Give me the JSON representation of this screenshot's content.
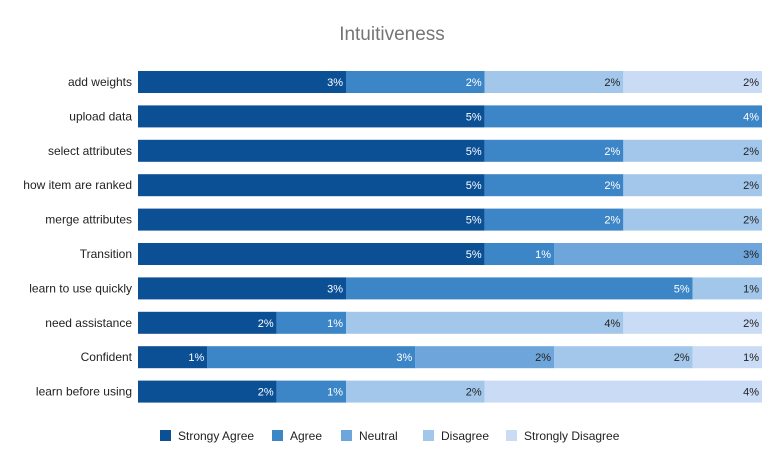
{
  "chart_data": {
    "type": "bar",
    "orientation": "horizontal",
    "stacking": "percent",
    "title": "Intuitiveness",
    "categories": [
      "add weights",
      "upload data",
      "select attributes",
      "how item are ranked",
      "merge attributes",
      "Transition",
      "learn to use quickly",
      "need assistance",
      "Confident",
      "learn before using"
    ],
    "series": [
      {
        "name": "Strongy Agree",
        "color": "#0b4f95",
        "values": [
          3,
          5,
          5,
          5,
          5,
          5,
          3,
          2,
          1,
          2
        ],
        "labels": [
          "3%",
          "5%",
          "5%",
          "5%",
          "5%",
          "5%",
          "3%",
          "2%",
          "1%",
          "2%"
        ]
      },
      {
        "name": "Agree",
        "color": "#3c85c6",
        "values": [
          2,
          4,
          2,
          2,
          2,
          1,
          5,
          1,
          3,
          1
        ],
        "labels": [
          "2%",
          "4%",
          "2%",
          "2%",
          "2%",
          "1%",
          "5%",
          "1%",
          "3%",
          "1%"
        ]
      },
      {
        "name": "Neutral",
        "color": "#6ea6dc",
        "values": [
          0,
          0,
          0,
          0,
          0,
          3,
          0,
          0,
          2,
          0
        ],
        "labels": [
          "",
          "",
          "",
          "",
          "",
          "3%",
          "",
          "",
          "2%",
          ""
        ]
      },
      {
        "name": "Disagree",
        "color": "#a3c7ea",
        "values": [
          2,
          0,
          2,
          2,
          2,
          0,
          1,
          4,
          2,
          2
        ],
        "labels": [
          "2%",
          "",
          "2%",
          "2%",
          "2%",
          "",
          "1%",
          "4%",
          "2%",
          "2%"
        ]
      },
      {
        "name": "Strongly Disagree",
        "color": "#c9dbf5",
        "values": [
          2,
          0,
          0,
          0,
          0,
          0,
          0,
          2,
          1,
          4
        ],
        "labels": [
          "2%",
          "",
          "",
          "",
          "",
          "",
          "",
          "2%",
          "1%",
          "4%"
        ]
      }
    ],
    "xlim": [
      0,
      1
    ],
    "grid": false,
    "legend_position": "bottom"
  }
}
